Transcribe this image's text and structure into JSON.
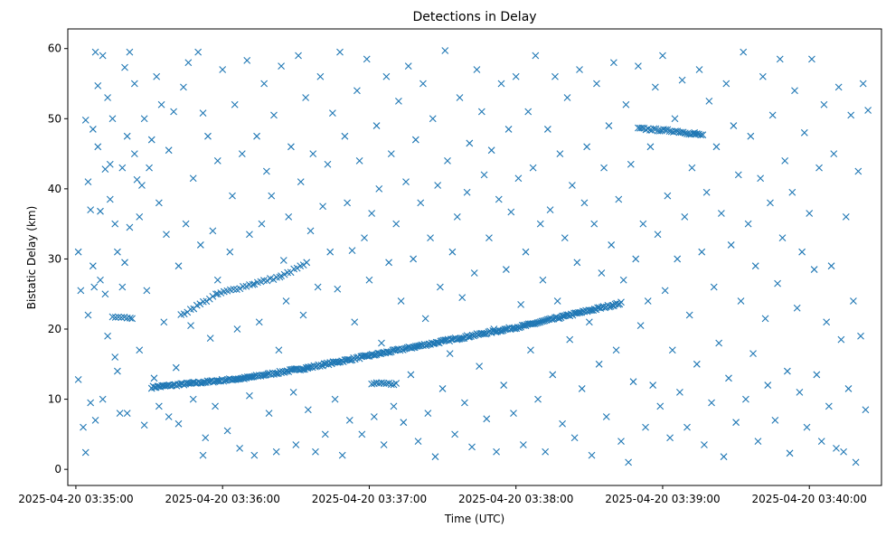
{
  "chart_data": {
    "type": "scatter",
    "title": "Detections in Delay",
    "xlabel": "Time (UTC)",
    "ylabel": "Bistatic Delay (km)",
    "x_units": "seconds since 2025-04-20 03:35:00",
    "xlim": [
      -3.3,
      329.5
    ],
    "ylim": [
      -2.3,
      62.8
    ],
    "marker": "x",
    "color": "#1f77b4",
    "xticks": [
      {
        "value": 0,
        "label": "2025-04-20 03:35:00"
      },
      {
        "value": 60,
        "label": "2025-04-20 03:36:00"
      },
      {
        "value": 120,
        "label": "2025-04-20 03:37:00"
      },
      {
        "value": 180,
        "label": "2025-04-20 03:38:00"
      },
      {
        "value": 240,
        "label": "2025-04-20 03:39:00"
      },
      {
        "value": 300,
        "label": "2025-04-20 03:40:00"
      }
    ],
    "yticks": [
      {
        "value": 0,
        "label": "0"
      },
      {
        "value": 10,
        "label": "10"
      },
      {
        "value": 20,
        "label": "20"
      },
      {
        "value": 30,
        "label": "30"
      },
      {
        "value": 40,
        "label": "40"
      },
      {
        "value": 50,
        "label": "50"
      },
      {
        "value": 60,
        "label": "60"
      }
    ],
    "tracks": [
      {
        "name": "main",
        "step": 0.6,
        "knots": [
          [
            31,
            11.7
          ],
          [
            69,
            13
          ],
          [
            95,
            14.5
          ],
          [
            117,
            16
          ],
          [
            139,
            17.5
          ],
          [
            161,
            19
          ],
          [
            184,
            20.5
          ],
          [
            202,
            22
          ],
          [
            223,
            23.7
          ]
        ]
      },
      {
        "name": "upper",
        "step": 1.3,
        "knots": [
          [
            43,
            22
          ],
          [
            58,
            25
          ],
          [
            73,
            26.5
          ],
          [
            84,
            27.5
          ],
          [
            95,
            29.5
          ]
        ]
      },
      {
        "name": "high",
        "step": 0.8,
        "knots": [
          [
            230,
            48.6
          ],
          [
            246,
            48.2
          ],
          [
            257,
            47.6
          ]
        ]
      },
      {
        "name": "low",
        "step": 1.0,
        "knots": [
          [
            121,
            12.2
          ],
          [
            132,
            12.2
          ]
        ]
      },
      {
        "name": "early",
        "step": 1.2,
        "knots": [
          [
            15,
            21.7
          ],
          [
            23,
            21.7
          ]
        ]
      }
    ],
    "points": [
      [
        1,
        31
      ],
      [
        1,
        12.8
      ],
      [
        2,
        25.5
      ],
      [
        3,
        6
      ],
      [
        4,
        49.8
      ],
      [
        4,
        2.4
      ],
      [
        5,
        22
      ],
      [
        5,
        41
      ],
      [
        6,
        37
      ],
      [
        6,
        9.5
      ],
      [
        7,
        48.5
      ],
      [
        7,
        29
      ],
      [
        7.5,
        26
      ],
      [
        8,
        59.5
      ],
      [
        8,
        7
      ],
      [
        9,
        54.7
      ],
      [
        9,
        46
      ],
      [
        10,
        36.8
      ],
      [
        10,
        27
      ],
      [
        11,
        59
      ],
      [
        11,
        10
      ],
      [
        12,
        42.8
      ],
      [
        12,
        25
      ],
      [
        13,
        53
      ],
      [
        13,
        19
      ],
      [
        14,
        43.5
      ],
      [
        14,
        38.5
      ],
      [
        15,
        50
      ],
      [
        16,
        16
      ],
      [
        16,
        35
      ],
      [
        17,
        31
      ],
      [
        17,
        14
      ],
      [
        18,
        8
      ],
      [
        19,
        26
      ],
      [
        19,
        43
      ],
      [
        20,
        57.3
      ],
      [
        20,
        29.5
      ],
      [
        21,
        47.5
      ],
      [
        21,
        8
      ],
      [
        22,
        59.5
      ],
      [
        22,
        34.5
      ],
      [
        23,
        21.5
      ],
      [
        24,
        55
      ],
      [
        24,
        45
      ],
      [
        25,
        41.3
      ],
      [
        26,
        17
      ],
      [
        26,
        36
      ],
      [
        27,
        40.5
      ],
      [
        28,
        6.3
      ],
      [
        28,
        50
      ],
      [
        29,
        25.5
      ],
      [
        30,
        43
      ],
      [
        31,
        47
      ],
      [
        32,
        13
      ],
      [
        33,
        56
      ],
      [
        34,
        9
      ],
      [
        34,
        38
      ],
      [
        35,
        52
      ],
      [
        36,
        21
      ],
      [
        37,
        33.5
      ],
      [
        38,
        45.5
      ],
      [
        38,
        7.5
      ],
      [
        40,
        51
      ],
      [
        41,
        14.5
      ],
      [
        42,
        29
      ],
      [
        42,
        6.5
      ],
      [
        44,
        54.5
      ],
      [
        45,
        35
      ],
      [
        46,
        58
      ],
      [
        47,
        20.5
      ],
      [
        48,
        41.5
      ],
      [
        48,
        10
      ],
      [
        50,
        59.5
      ],
      [
        51,
        32
      ],
      [
        52,
        50.8
      ],
      [
        52,
        2
      ],
      [
        53,
        4.5
      ],
      [
        54,
        47.5
      ],
      [
        55,
        18.7
      ],
      [
        56,
        34
      ],
      [
        57,
        9
      ],
      [
        58,
        27
      ],
      [
        58,
        44
      ],
      [
        60,
        57
      ],
      [
        62,
        5.5
      ],
      [
        63,
        31
      ],
      [
        64,
        39
      ],
      [
        65,
        52
      ],
      [
        66,
        20
      ],
      [
        67,
        3
      ],
      [
        68,
        45
      ],
      [
        70,
        58.3
      ],
      [
        71,
        10.5
      ],
      [
        71,
        33.5
      ],
      [
        73,
        2
      ],
      [
        74,
        47.5
      ],
      [
        75,
        21
      ],
      [
        76,
        35
      ],
      [
        77,
        55
      ],
      [
        78,
        42.5
      ],
      [
        79,
        8
      ],
      [
        80,
        39
      ],
      [
        81,
        50.5
      ],
      [
        82,
        2.5
      ],
      [
        83,
        17
      ],
      [
        84,
        57.5
      ],
      [
        85,
        29.8
      ],
      [
        86,
        24
      ],
      [
        87,
        36
      ],
      [
        88,
        46
      ],
      [
        89,
        11
      ],
      [
        90,
        3.5
      ],
      [
        91,
        59
      ],
      [
        92,
        41
      ],
      [
        93,
        22
      ],
      [
        94,
        53
      ],
      [
        95,
        8.5
      ],
      [
        96,
        34
      ],
      [
        97,
        45
      ],
      [
        98,
        2.5
      ],
      [
        99,
        26
      ],
      [
        100,
        56
      ],
      [
        101,
        37.5
      ],
      [
        102,
        5
      ],
      [
        103,
        43.5
      ],
      [
        104,
        31
      ],
      [
        105,
        50.8
      ],
      [
        106,
        10
      ],
      [
        107,
        25.7
      ],
      [
        108,
        59.5
      ],
      [
        109,
        2
      ],
      [
        110,
        47.5
      ],
      [
        111,
        38
      ],
      [
        112,
        7
      ],
      [
        113,
        31.2
      ],
      [
        114,
        21
      ],
      [
        115,
        54
      ],
      [
        116,
        44
      ],
      [
        117,
        5
      ],
      [
        118,
        33
      ],
      [
        119,
        58.5
      ],
      [
        120,
        27
      ],
      [
        121,
        36.5
      ],
      [
        122,
        7.5
      ],
      [
        123,
        49
      ],
      [
        124,
        40
      ],
      [
        125,
        18
      ],
      [
        126,
        3.5
      ],
      [
        127,
        56
      ],
      [
        128,
        29.5
      ],
      [
        129,
        45
      ],
      [
        130,
        9
      ],
      [
        131,
        35
      ],
      [
        132,
        52.5
      ],
      [
        133,
        24
      ],
      [
        134,
        6.7
      ],
      [
        135,
        41
      ],
      [
        136,
        57.5
      ],
      [
        137,
        13.5
      ],
      [
        138,
        30
      ],
      [
        139,
        47
      ],
      [
        140,
        4
      ],
      [
        141,
        38
      ],
      [
        142,
        55
      ],
      [
        143,
        21.5
      ],
      [
        144,
        8
      ],
      [
        145,
        33
      ],
      [
        146,
        50
      ],
      [
        147,
        1.8
      ],
      [
        148,
        40.5
      ],
      [
        149,
        26
      ],
      [
        150,
        11.5
      ],
      [
        151,
        59.7
      ],
      [
        152,
        44
      ],
      [
        153,
        16.5
      ],
      [
        154,
        31
      ],
      [
        155,
        5
      ],
      [
        156,
        36
      ],
      [
        157,
        53
      ],
      [
        158,
        24.5
      ],
      [
        159,
        9.5
      ],
      [
        160,
        39.5
      ],
      [
        161,
        46.5
      ],
      [
        162,
        3.2
      ],
      [
        163,
        28
      ],
      [
        164,
        57
      ],
      [
        165,
        14.7
      ],
      [
        166,
        51
      ],
      [
        167,
        42
      ],
      [
        168,
        7.2
      ],
      [
        169,
        33
      ],
      [
        170,
        45.5
      ],
      [
        171,
        20
      ],
      [
        172,
        2.5
      ],
      [
        173,
        38.5
      ],
      [
        174,
        55
      ],
      [
        175,
        12
      ],
      [
        176,
        28.5
      ],
      [
        177,
        48.5
      ],
      [
        178,
        36.7
      ],
      [
        179,
        8
      ],
      [
        180,
        56
      ],
      [
        181,
        41.5
      ],
      [
        182,
        23.5
      ],
      [
        183,
        3.5
      ],
      [
        184,
        31
      ],
      [
        185,
        51
      ],
      [
        186,
        17
      ],
      [
        187,
        43
      ],
      [
        188,
        59
      ],
      [
        189,
        10
      ],
      [
        190,
        35
      ],
      [
        191,
        27
      ],
      [
        192,
        2.5
      ],
      [
        193,
        48.5
      ],
      [
        194,
        37
      ],
      [
        195,
        13.5
      ],
      [
        196,
        56
      ],
      [
        197,
        24
      ],
      [
        198,
        45
      ],
      [
        199,
        6.5
      ],
      [
        200,
        33
      ],
      [
        201,
        53
      ],
      [
        202,
        18.5
      ],
      [
        203,
        40.5
      ],
      [
        204,
        4.5
      ],
      [
        205,
        29.5
      ],
      [
        206,
        57
      ],
      [
        207,
        11.5
      ],
      [
        208,
        38
      ],
      [
        209,
        46
      ],
      [
        210,
        21
      ],
      [
        211,
        2
      ],
      [
        212,
        35
      ],
      [
        213,
        55
      ],
      [
        214,
        15
      ],
      [
        215,
        28
      ],
      [
        216,
        43
      ],
      [
        217,
        7.5
      ],
      [
        218,
        49
      ],
      [
        219,
        32
      ],
      [
        220,
        58
      ],
      [
        221,
        17
      ],
      [
        222,
        38.5
      ],
      [
        223,
        4
      ],
      [
        224,
        27
      ],
      [
        225,
        52
      ],
      [
        226,
        1
      ],
      [
        227,
        43.5
      ],
      [
        228,
        12.5
      ],
      [
        229,
        30
      ],
      [
        230,
        57.5
      ],
      [
        231,
        20.5
      ],
      [
        232,
        35
      ],
      [
        233,
        6
      ],
      [
        234,
        24
      ],
      [
        235,
        46
      ],
      [
        236,
        12
      ],
      [
        237,
        54.5
      ],
      [
        238,
        33.5
      ],
      [
        239,
        9
      ],
      [
        240,
        59
      ],
      [
        241,
        25.5
      ],
      [
        242,
        39
      ],
      [
        243,
        4.5
      ],
      [
        244,
        17
      ],
      [
        245,
        50
      ],
      [
        246,
        30
      ],
      [
        247,
        11
      ],
      [
        248,
        55.5
      ],
      [
        249,
        36
      ],
      [
        250,
        6
      ],
      [
        251,
        22
      ],
      [
        252,
        43
      ],
      [
        253,
        48
      ],
      [
        254,
        15
      ],
      [
        255,
        57
      ],
      [
        256,
        31
      ],
      [
        257,
        3.5
      ],
      [
        258,
        39.5
      ],
      [
        259,
        52.5
      ],
      [
        260,
        9.5
      ],
      [
        261,
        26
      ],
      [
        262,
        46
      ],
      [
        263,
        18
      ],
      [
        264,
        36.5
      ],
      [
        265,
        1.8
      ],
      [
        266,
        55
      ],
      [
        267,
        13
      ],
      [
        268,
        32
      ],
      [
        269,
        49
      ],
      [
        270,
        6.7
      ],
      [
        271,
        42
      ],
      [
        272,
        24
      ],
      [
        273,
        59.5
      ],
      [
        274,
        10
      ],
      [
        275,
        35
      ],
      [
        276,
        47.5
      ],
      [
        277,
        16.5
      ],
      [
        278,
        29
      ],
      [
        279,
        4
      ],
      [
        280,
        41.5
      ],
      [
        281,
        56
      ],
      [
        282,
        21.5
      ],
      [
        283,
        12
      ],
      [
        284,
        38
      ],
      [
        285,
        50.5
      ],
      [
        286,
        7
      ],
      [
        287,
        26.5
      ],
      [
        288,
        58.5
      ],
      [
        289,
        33
      ],
      [
        290,
        44
      ],
      [
        291,
        14
      ],
      [
        292,
        2.3
      ],
      [
        293,
        39.5
      ],
      [
        294,
        54
      ],
      [
        295,
        23
      ],
      [
        296,
        11
      ],
      [
        297,
        31
      ],
      [
        298,
        48
      ],
      [
        299,
        6
      ],
      [
        300,
        36.5
      ],
      [
        301,
        58.5
      ],
      [
        302,
        28.5
      ],
      [
        303,
        13.5
      ],
      [
        304,
        43
      ],
      [
        305,
        4
      ],
      [
        306,
        52
      ],
      [
        307,
        21
      ],
      [
        308,
        9
      ],
      [
        309,
        29
      ],
      [
        310,
        45
      ],
      [
        311,
        3
      ],
      [
        312,
        54.5
      ],
      [
        313,
        18.5
      ],
      [
        314,
        2.5
      ],
      [
        315,
        36
      ],
      [
        316,
        11.5
      ],
      [
        317,
        50.5
      ],
      [
        318,
        24
      ],
      [
        319,
        1
      ],
      [
        320,
        42.5
      ],
      [
        321,
        19
      ],
      [
        322,
        55
      ],
      [
        323,
        8.5
      ],
      [
        324,
        51.2
      ]
    ]
  }
}
